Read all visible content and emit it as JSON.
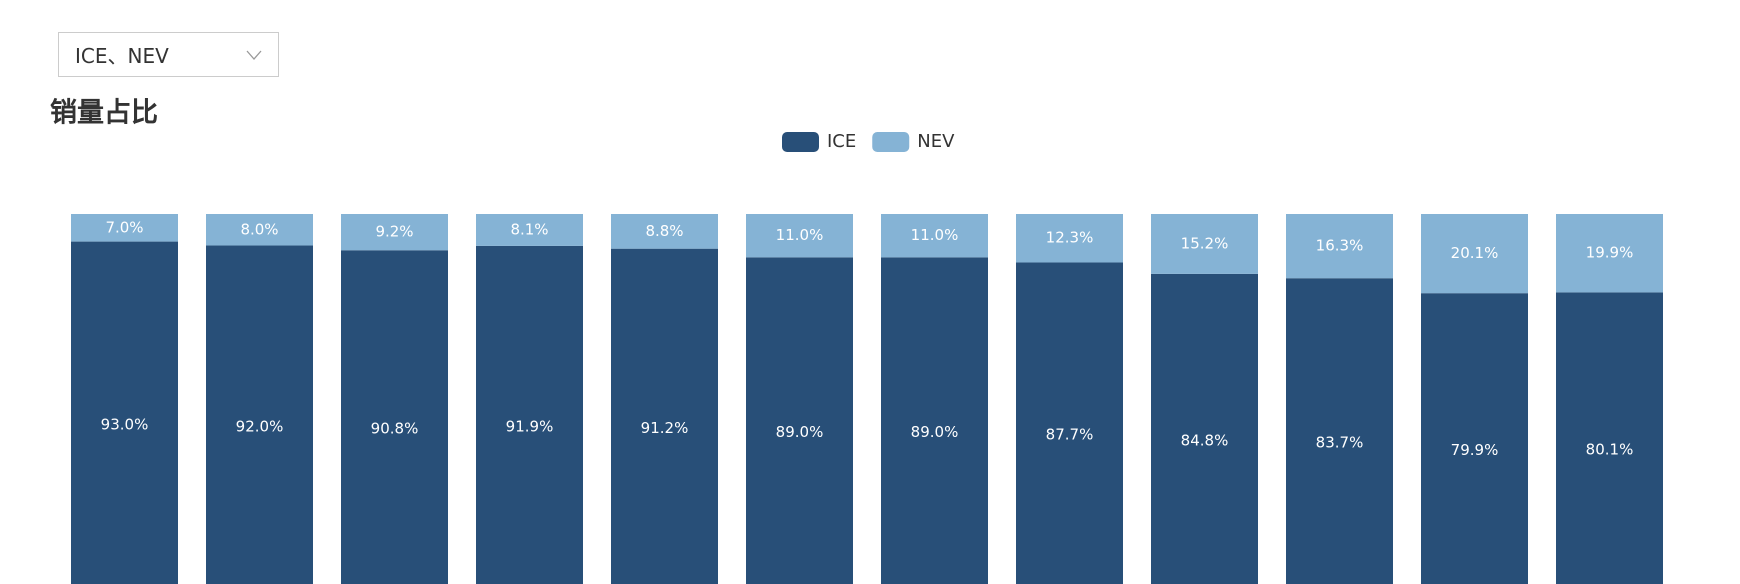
{
  "dropdown": {
    "value": "ICE、NEV"
  },
  "chart_data": {
    "type": "stacked_bar",
    "title": "销量占比",
    "series": [
      {
        "name": "ICE",
        "color": "#284f78",
        "values": [
          93.0,
          92.0,
          90.8,
          91.9,
          91.2,
          89.0,
          89.0,
          87.7,
          84.8,
          83.7,
          79.9,
          80.1
        ],
        "value_labels": [
          "93.0%",
          "92.0%",
          "90.8%",
          "91.9%",
          "91.2%",
          "89.0%",
          "89.0%",
          "87.7%",
          "84.8%",
          "83.7%",
          "79.9%",
          "80.1%"
        ]
      },
      {
        "name": "NEV",
        "color": "#85b3d5",
        "values": [
          7.0,
          8.0,
          9.2,
          8.1,
          8.8,
          11.0,
          11.0,
          12.3,
          15.2,
          16.3,
          20.1,
          19.9
        ],
        "value_labels": [
          "7.0%",
          "8.0%",
          "9.2%",
          "8.1%",
          "8.8%",
          "11.0%",
          "11.0%",
          "12.3%",
          "15.2%",
          "16.3%",
          "20.1%",
          "19.9%"
        ]
      }
    ],
    "ylim": [
      0,
      100
    ],
    "legend": "top"
  }
}
